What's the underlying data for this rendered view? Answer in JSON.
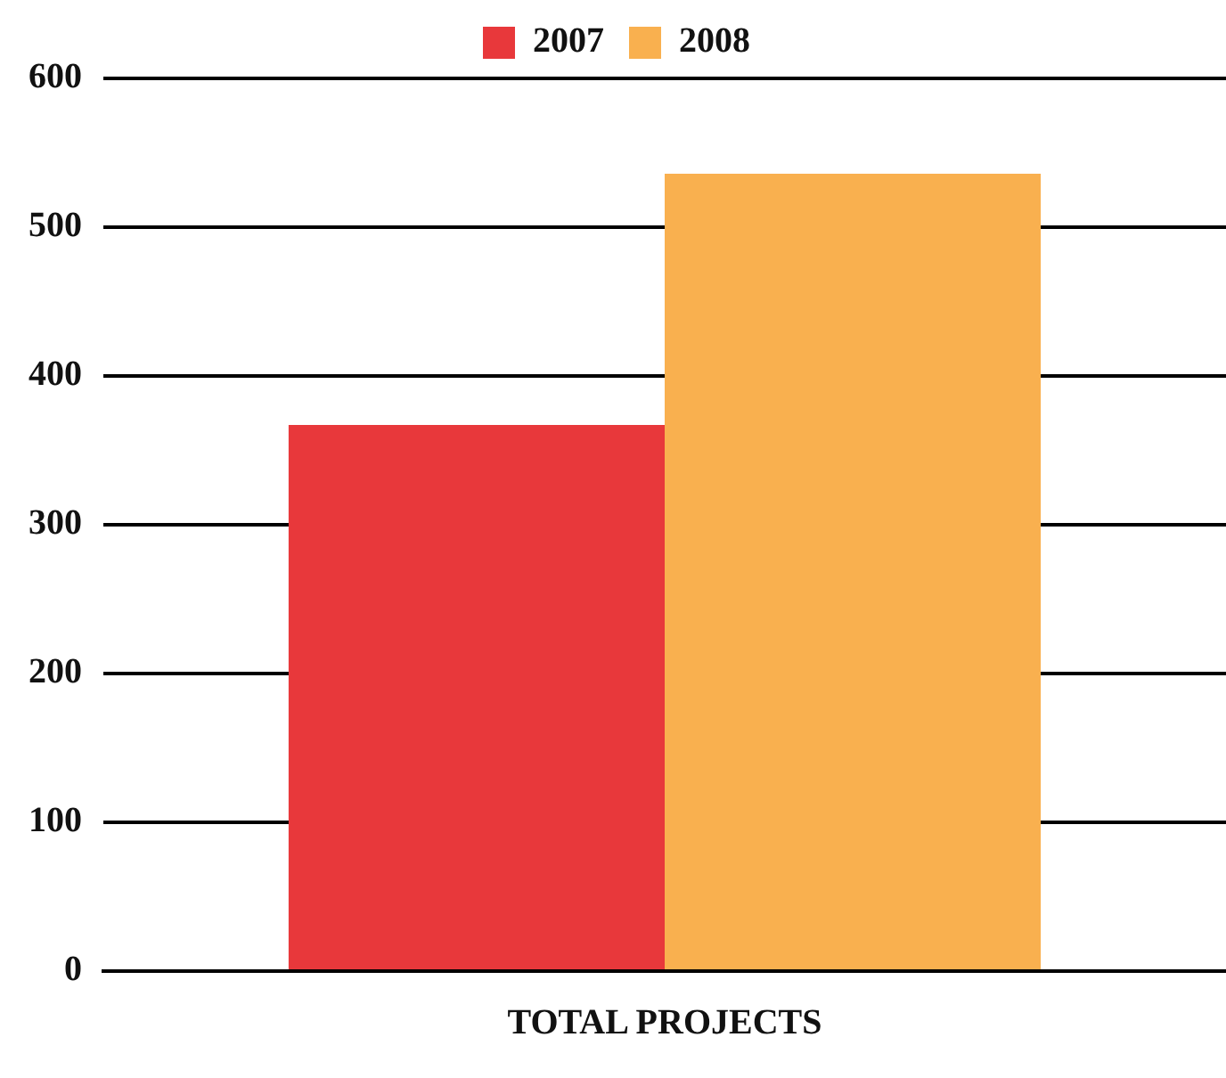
{
  "chart_data": {
    "type": "bar",
    "categories": [
      "TOTAL PROJECTS"
    ],
    "series": [
      {
        "name": "2007",
        "color": "#e8383b",
        "values": [
          367
        ]
      },
      {
        "name": "2008",
        "color": "#f9b04f",
        "values": [
          536
        ]
      }
    ],
    "ylim": [
      0,
      600
    ],
    "yticks": [
      0,
      100,
      200,
      300,
      400,
      500,
      600
    ],
    "grid": "y",
    "legend": "top"
  }
}
